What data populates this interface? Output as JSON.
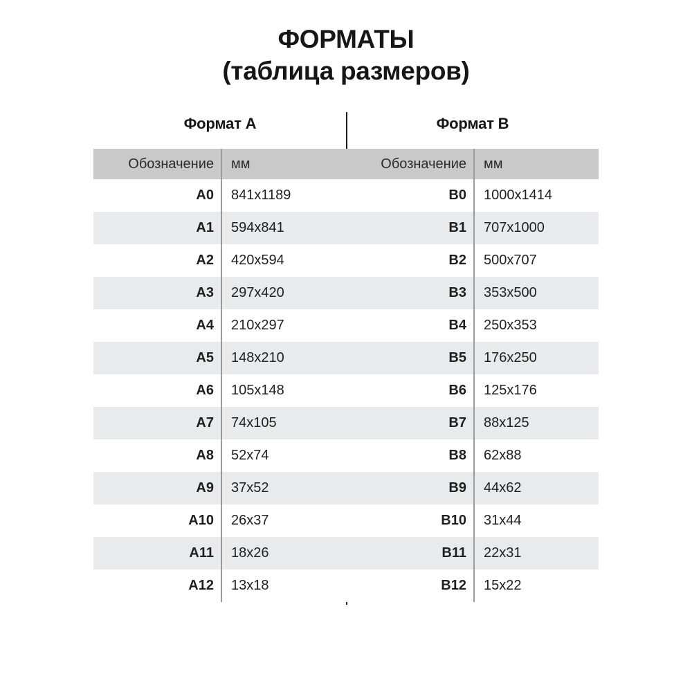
{
  "title": {
    "line1": "ФОРМАТЫ",
    "line2": "(таблица размеров)"
  },
  "sections": {
    "a": {
      "title": "Формат А"
    },
    "b": {
      "title": "Формат В"
    }
  },
  "table": {
    "headers": {
      "designation": "Обозначение",
      "unit": "мм"
    },
    "rows": [
      {
        "a_label": "A0",
        "a_size": "841x1189",
        "b_label": "B0",
        "b_size": "1000x1414"
      },
      {
        "a_label": "A1",
        "a_size": "594x841",
        "b_label": "B1",
        "b_size": "707x1000"
      },
      {
        "a_label": "A2",
        "a_size": "420x594",
        "b_label": "B2",
        "b_size": "500x707"
      },
      {
        "a_label": "A3",
        "a_size": "297x420",
        "b_label": "B3",
        "b_size": "353x500"
      },
      {
        "a_label": "A4",
        "a_size": "210x297",
        "b_label": "B4",
        "b_size": "250x353"
      },
      {
        "a_label": "A5",
        "a_size": "148x210",
        "b_label": "B5",
        "b_size": "176x250"
      },
      {
        "a_label": "A6",
        "a_size": "105x148",
        "b_label": "B6",
        "b_size": "125x176"
      },
      {
        "a_label": "A7",
        "a_size": "74x105",
        "b_label": "B7",
        "b_size": "88x125"
      },
      {
        "a_label": "A8",
        "a_size": "52x74",
        "b_label": "B8",
        "b_size": "62x88"
      },
      {
        "a_label": "A9",
        "a_size": "37x52",
        "b_label": "B9",
        "b_size": "44x62"
      },
      {
        "a_label": "A10",
        "a_size": "26x37",
        "b_label": "B10",
        "b_size": "31x44"
      },
      {
        "a_label": "A11",
        "a_size": "18x26",
        "b_label": "B11",
        "b_size": "22x31"
      },
      {
        "a_label": "A12",
        "a_size": "13x18",
        "b_label": "B12",
        "b_size": "15x22"
      }
    ]
  },
  "colors": {
    "header_bg": "#c9c9c9",
    "stripe_bg": "#e8eaeb",
    "divider": "#9c9c9c",
    "center_line": "#1c1c1c",
    "text": "#1f1f1f"
  }
}
